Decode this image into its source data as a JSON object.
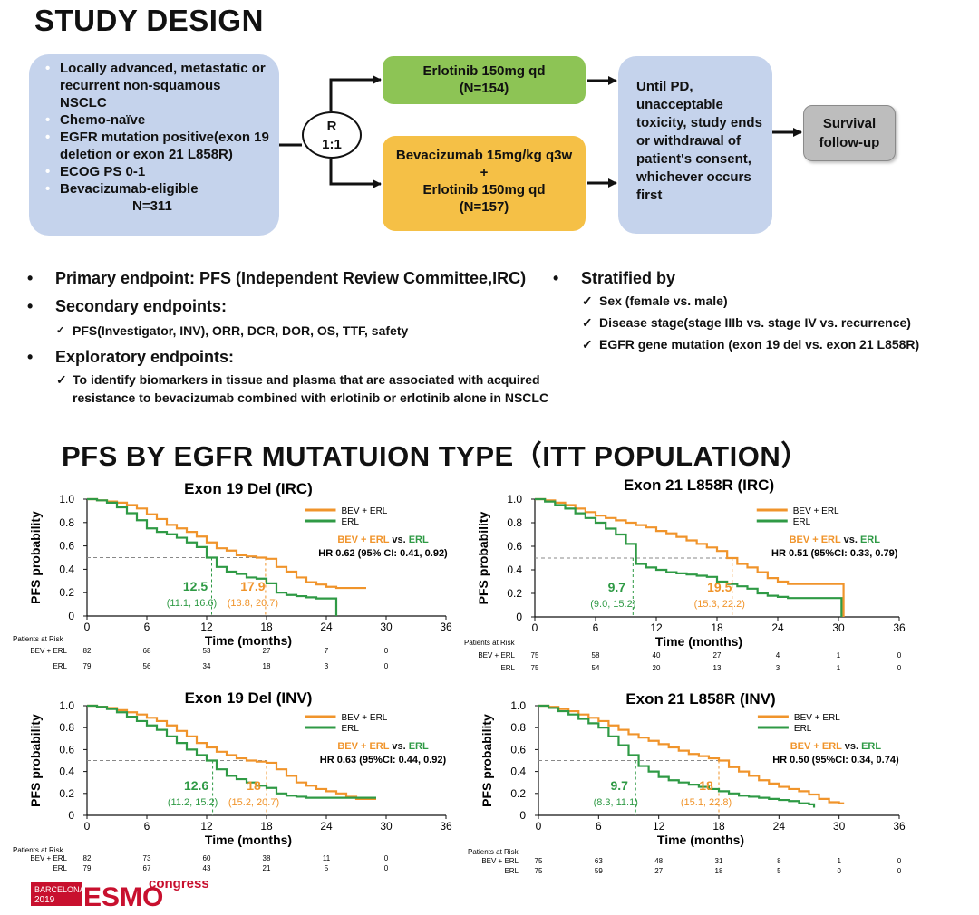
{
  "study_design": {
    "title": "STUDY DESIGN",
    "population": {
      "items": [
        "Locally advanced, metastatic or recurrent non-squamous NSCLC",
        "Chemo-naïve",
        "EGFR mutation positive(exon 19 deletion or exon 21 L858R)",
        "ECOG PS 0-1",
        "Bevacizumab-eligible"
      ],
      "n": "N=311"
    },
    "randomization": {
      "r": "R",
      "ratio": "1:1"
    },
    "arm_erl": {
      "line1": "Erlotinib 150mg qd",
      "line2": "(N=154)"
    },
    "arm_bev": {
      "line1": "Bevacizumab 15mg/kg q3w",
      "plus": "+",
      "line2": "Erlotinib 150mg qd",
      "line3": "(N=157)"
    },
    "until": "Until PD, unacceptable toxicity, study ends or withdrawal of patient's consent, whichever occurs first",
    "survival": {
      "line1": "Survival",
      "line2": "follow-up"
    }
  },
  "endpoints": {
    "primary": "Primary endpoint: PFS (Independent Review Committee,IRC)",
    "secondary_title": "Secondary endpoints:",
    "secondary_detail": "PFS(Investigator, INV), ORR, DCR, DOR, OS, TTF, safety",
    "exploratory_title": "Exploratory endpoints:",
    "exploratory_detail_1": "To identify biomarkers in tissue and plasma that are associated with acquired",
    "exploratory_detail_2": "resistance to bevacizumab combined with erlotinib or erlotinib alone in NSCLC",
    "stratified_title": "Stratified by",
    "stratified_items": [
      "Sex (female vs. male)",
      "Disease stage(stage IIIb vs. stage IV vs. recurrence)",
      "EGFR gene mutation (exon 19 del vs. exon 21 L858R)"
    ]
  },
  "pfs_section_title": "PFS BY EGFR MUTATUION TYPE（ITT POPULATION）",
  "colors": {
    "bev": "#f0942b",
    "erl": "#2f9a45",
    "box_blue": "#c5d3ec",
    "box_green": "#8dc455",
    "box_orange": "#f5c046"
  },
  "risk_labels": {
    "header": "Patients at Risk",
    "bev": "BEV + ERL",
    "erl": "ERL"
  },
  "esmo": {
    "city": "BARCELONA",
    "year": "2019",
    "brand": "ESMO",
    "suffix": "congress"
  },
  "chart_data": [
    {
      "type": "line",
      "title": "Exon 19 Del (IRC)",
      "xlabel": "Time (months)",
      "ylabel": "PFS probability",
      "xlim": [
        0,
        36
      ],
      "ylim": [
        0,
        1
      ],
      "xticks": [
        0,
        6,
        12,
        18,
        24,
        30,
        36
      ],
      "yticks": [
        "0",
        "0.2",
        "0.4",
        "0.6",
        "0.8",
        "1.0"
      ],
      "legend": [
        "BEV + ERL",
        "ERL"
      ],
      "hr_vs": [
        "BEV + ERL",
        "vs.",
        "ERL"
      ],
      "hr_text": "HR 0.62 (95% CI: 0.41, 0.92)",
      "median_erl": {
        "value": 12.5,
        "label": "12.5",
        "ci": "(11.1, 16.6)"
      },
      "median_bev": {
        "value": 17.9,
        "label": "17.9",
        "ci": "(13.8, 20.7)"
      },
      "series": [
        {
          "name": "BEV + ERL",
          "x": [
            0,
            1,
            2,
            3,
            4,
            5,
            6,
            7,
            8,
            9,
            10,
            11,
            12,
            13,
            14,
            15,
            16,
            17,
            18,
            19,
            20,
            21,
            22,
            23,
            24,
            25,
            26,
            27,
            28
          ],
          "y": [
            1.0,
            0.99,
            0.98,
            0.97,
            0.95,
            0.92,
            0.87,
            0.83,
            0.78,
            0.75,
            0.72,
            0.68,
            0.63,
            0.58,
            0.56,
            0.52,
            0.51,
            0.5,
            0.49,
            0.42,
            0.38,
            0.33,
            0.29,
            0.27,
            0.25,
            0.24,
            0.24,
            0.24,
            0.24
          ]
        },
        {
          "name": "ERL",
          "x": [
            0,
            1,
            2,
            3,
            4,
            5,
            6,
            7,
            8,
            9,
            10,
            11,
            12,
            13,
            14,
            15,
            16,
            17,
            18,
            19,
            20,
            21,
            22,
            23,
            24,
            25
          ],
          "y": [
            1.0,
            0.99,
            0.97,
            0.93,
            0.88,
            0.82,
            0.75,
            0.72,
            0.7,
            0.67,
            0.63,
            0.59,
            0.5,
            0.42,
            0.38,
            0.36,
            0.33,
            0.32,
            0.28,
            0.2,
            0.18,
            0.17,
            0.16,
            0.15,
            0.15,
            0.0
          ]
        }
      ],
      "risk_times": [
        "0",
        "6",
        "12",
        "18",
        "24",
        "30"
      ],
      "risk_bev": [
        "82",
        "68",
        "53",
        "27",
        "7",
        "0"
      ],
      "risk_erl": [
        "79",
        "56",
        "34",
        "18",
        "3",
        "0"
      ]
    },
    {
      "type": "line",
      "title": "Exon 21 L858R (IRC)",
      "xlabel": "Time (months)",
      "ylabel": "PFS probability",
      "xlim": [
        0,
        36
      ],
      "ylim": [
        0,
        1
      ],
      "xticks": [
        0,
        6,
        12,
        18,
        24,
        30,
        36
      ],
      "yticks": [
        "0",
        "0.2",
        "0.4",
        "0.6",
        "0.8",
        "1.0"
      ],
      "legend": [
        "BEV + ERL",
        "ERL"
      ],
      "hr_vs": [
        "BEV + ERL",
        "vs.",
        "ERL"
      ],
      "hr_text": "HR 0.51 (95%CI: 0.33, 0.79)",
      "median_erl": {
        "value": 9.7,
        "label": "9.7",
        "ci": "(9.0, 15.2)"
      },
      "median_bev": {
        "value": 19.5,
        "label": "19.5",
        "ci": "(15.3, 22.2)"
      },
      "series": [
        {
          "name": "BEV + ERL",
          "x": [
            0,
            1,
            2,
            3,
            4,
            5,
            6,
            7,
            8,
            9,
            10,
            11,
            12,
            13,
            14,
            15,
            16,
            17,
            18,
            19,
            20,
            21,
            22,
            23,
            24,
            25,
            26,
            27,
            28,
            29,
            30,
            30.5
          ],
          "y": [
            1.0,
            0.99,
            0.97,
            0.95,
            0.92,
            0.89,
            0.86,
            0.84,
            0.82,
            0.8,
            0.78,
            0.76,
            0.73,
            0.71,
            0.68,
            0.65,
            0.62,
            0.59,
            0.56,
            0.5,
            0.45,
            0.42,
            0.38,
            0.33,
            0.3,
            0.28,
            0.28,
            0.28,
            0.28,
            0.28,
            0.28,
            0.0
          ]
        },
        {
          "name": "ERL",
          "x": [
            0,
            1,
            2,
            3,
            4,
            5,
            6,
            7,
            8,
            9,
            10,
            11,
            12,
            13,
            14,
            15,
            16,
            17,
            18,
            19,
            20,
            21,
            22,
            23,
            24,
            25,
            26,
            27,
            28,
            29,
            30,
            30.3
          ],
          "y": [
            1.0,
            0.98,
            0.95,
            0.92,
            0.88,
            0.84,
            0.8,
            0.75,
            0.7,
            0.62,
            0.45,
            0.42,
            0.4,
            0.38,
            0.37,
            0.36,
            0.35,
            0.34,
            0.3,
            0.28,
            0.26,
            0.24,
            0.2,
            0.18,
            0.17,
            0.16,
            0.16,
            0.16,
            0.16,
            0.16,
            0.16,
            0.0
          ]
        }
      ],
      "risk_times": [
        "0",
        "6",
        "12",
        "18",
        "24",
        "30",
        "36"
      ],
      "risk_bev": [
        "75",
        "58",
        "40",
        "27",
        "4",
        "1",
        "0"
      ],
      "risk_erl": [
        "75",
        "54",
        "20",
        "13",
        "3",
        "1",
        "0"
      ]
    },
    {
      "type": "line",
      "title": "Exon 19 Del (INV)",
      "xlabel": "Time (months)",
      "ylabel": "PFS probability",
      "xlim": [
        0,
        36
      ],
      "ylim": [
        0,
        1
      ],
      "xticks": [
        0,
        6,
        12,
        18,
        24,
        30,
        36
      ],
      "yticks": [
        "0",
        "0.2",
        "0.4",
        "0.6",
        "0.8",
        "1.0"
      ],
      "legend": [
        "BEV + ERL",
        "ERL"
      ],
      "hr_vs": [
        "BEV + ERL",
        "vs.",
        "ERL"
      ],
      "hr_text": "HR 0.63 (95%CI: 0.44, 0.92)",
      "median_erl": {
        "value": 12.6,
        "label": "12.6",
        "ci": "(11.2, 15.2)"
      },
      "median_bev": {
        "value": 18,
        "label": "18",
        "ci": "(15.2, 20.7)"
      },
      "series": [
        {
          "name": "BEV + ERL",
          "x": [
            0,
            1,
            2,
            3,
            4,
            5,
            6,
            7,
            8,
            9,
            10,
            11,
            12,
            13,
            14,
            15,
            16,
            17,
            18,
            19,
            20,
            21,
            22,
            23,
            24,
            25,
            26,
            27,
            28,
            29
          ],
          "y": [
            1.0,
            0.99,
            0.98,
            0.96,
            0.94,
            0.92,
            0.89,
            0.86,
            0.82,
            0.77,
            0.72,
            0.66,
            0.62,
            0.58,
            0.55,
            0.52,
            0.5,
            0.49,
            0.48,
            0.42,
            0.36,
            0.3,
            0.27,
            0.24,
            0.22,
            0.2,
            0.17,
            0.15,
            0.15,
            0.15
          ]
        },
        {
          "name": "ERL",
          "x": [
            0,
            1,
            2,
            3,
            4,
            5,
            6,
            7,
            8,
            9,
            10,
            11,
            12,
            13,
            14,
            15,
            16,
            17,
            18,
            19,
            20,
            21,
            22,
            23,
            24,
            25,
            26,
            27,
            28,
            29
          ],
          "y": [
            1.0,
            0.99,
            0.97,
            0.94,
            0.9,
            0.86,
            0.82,
            0.78,
            0.72,
            0.66,
            0.6,
            0.55,
            0.5,
            0.42,
            0.36,
            0.33,
            0.3,
            0.27,
            0.25,
            0.2,
            0.18,
            0.17,
            0.16,
            0.16,
            0.16,
            0.16,
            0.16,
            0.16,
            0.16,
            0.16
          ]
        }
      ],
      "risk_times": [
        "0",
        "6",
        "12",
        "18",
        "24",
        "30"
      ],
      "risk_bev": [
        "82",
        "73",
        "60",
        "38",
        "11",
        "0"
      ],
      "risk_erl": [
        "79",
        "67",
        "43",
        "21",
        "5",
        "0"
      ]
    },
    {
      "type": "line",
      "title": "Exon 21 L858R (INV)",
      "xlabel": "Time (months)",
      "ylabel": "PFS probability",
      "xlim": [
        0,
        36
      ],
      "ylim": [
        0,
        1
      ],
      "xticks": [
        0,
        6,
        12,
        18,
        24,
        30,
        36
      ],
      "yticks": [
        "0",
        "0.2",
        "0.4",
        "0.6",
        "0.8",
        "1.0"
      ],
      "legend": [
        "BEV + ERL",
        "ERL"
      ],
      "hr_vs": [
        "BEV + ERL",
        "vs.",
        "ERL"
      ],
      "hr_text": "HR 0.50 (95%CI: 0.34, 0.74)",
      "median_erl": {
        "value": 9.7,
        "label": "9.7",
        "ci": "(8.3, 11.1)"
      },
      "median_bev": {
        "value": 18,
        "label": "18",
        "ci": "(15.1, 22.8)"
      },
      "series": [
        {
          "name": "BEV + ERL",
          "x": [
            0,
            1,
            2,
            3,
            4,
            5,
            6,
            7,
            8,
            9,
            10,
            11,
            12,
            13,
            14,
            15,
            16,
            17,
            18,
            19,
            20,
            21,
            22,
            23,
            24,
            25,
            26,
            27,
            28,
            29,
            30,
            30.5
          ],
          "y": [
            1.0,
            0.99,
            0.97,
            0.95,
            0.92,
            0.89,
            0.86,
            0.82,
            0.78,
            0.74,
            0.71,
            0.68,
            0.65,
            0.62,
            0.59,
            0.56,
            0.54,
            0.52,
            0.5,
            0.44,
            0.4,
            0.36,
            0.32,
            0.29,
            0.26,
            0.24,
            0.22,
            0.19,
            0.15,
            0.12,
            0.11,
            0.11
          ]
        },
        {
          "name": "ERL",
          "x": [
            0,
            1,
            2,
            3,
            4,
            5,
            6,
            7,
            8,
            9,
            10,
            11,
            12,
            13,
            14,
            15,
            16,
            17,
            18,
            19,
            20,
            21,
            22,
            23,
            24,
            25,
            26,
            27,
            27.5
          ],
          "y": [
            1.0,
            0.98,
            0.95,
            0.92,
            0.88,
            0.84,
            0.8,
            0.72,
            0.64,
            0.55,
            0.45,
            0.4,
            0.35,
            0.32,
            0.3,
            0.28,
            0.26,
            0.24,
            0.22,
            0.2,
            0.18,
            0.17,
            0.16,
            0.15,
            0.14,
            0.13,
            0.11,
            0.1,
            0.07
          ]
        }
      ],
      "risk_times": [
        "0",
        "6",
        "12",
        "18",
        "24",
        "30",
        "36"
      ],
      "risk_bev": [
        "75",
        "63",
        "48",
        "31",
        "8",
        "1",
        "0"
      ],
      "risk_erl": [
        "75",
        "59",
        "27",
        "18",
        "5",
        "0",
        "0"
      ]
    }
  ]
}
